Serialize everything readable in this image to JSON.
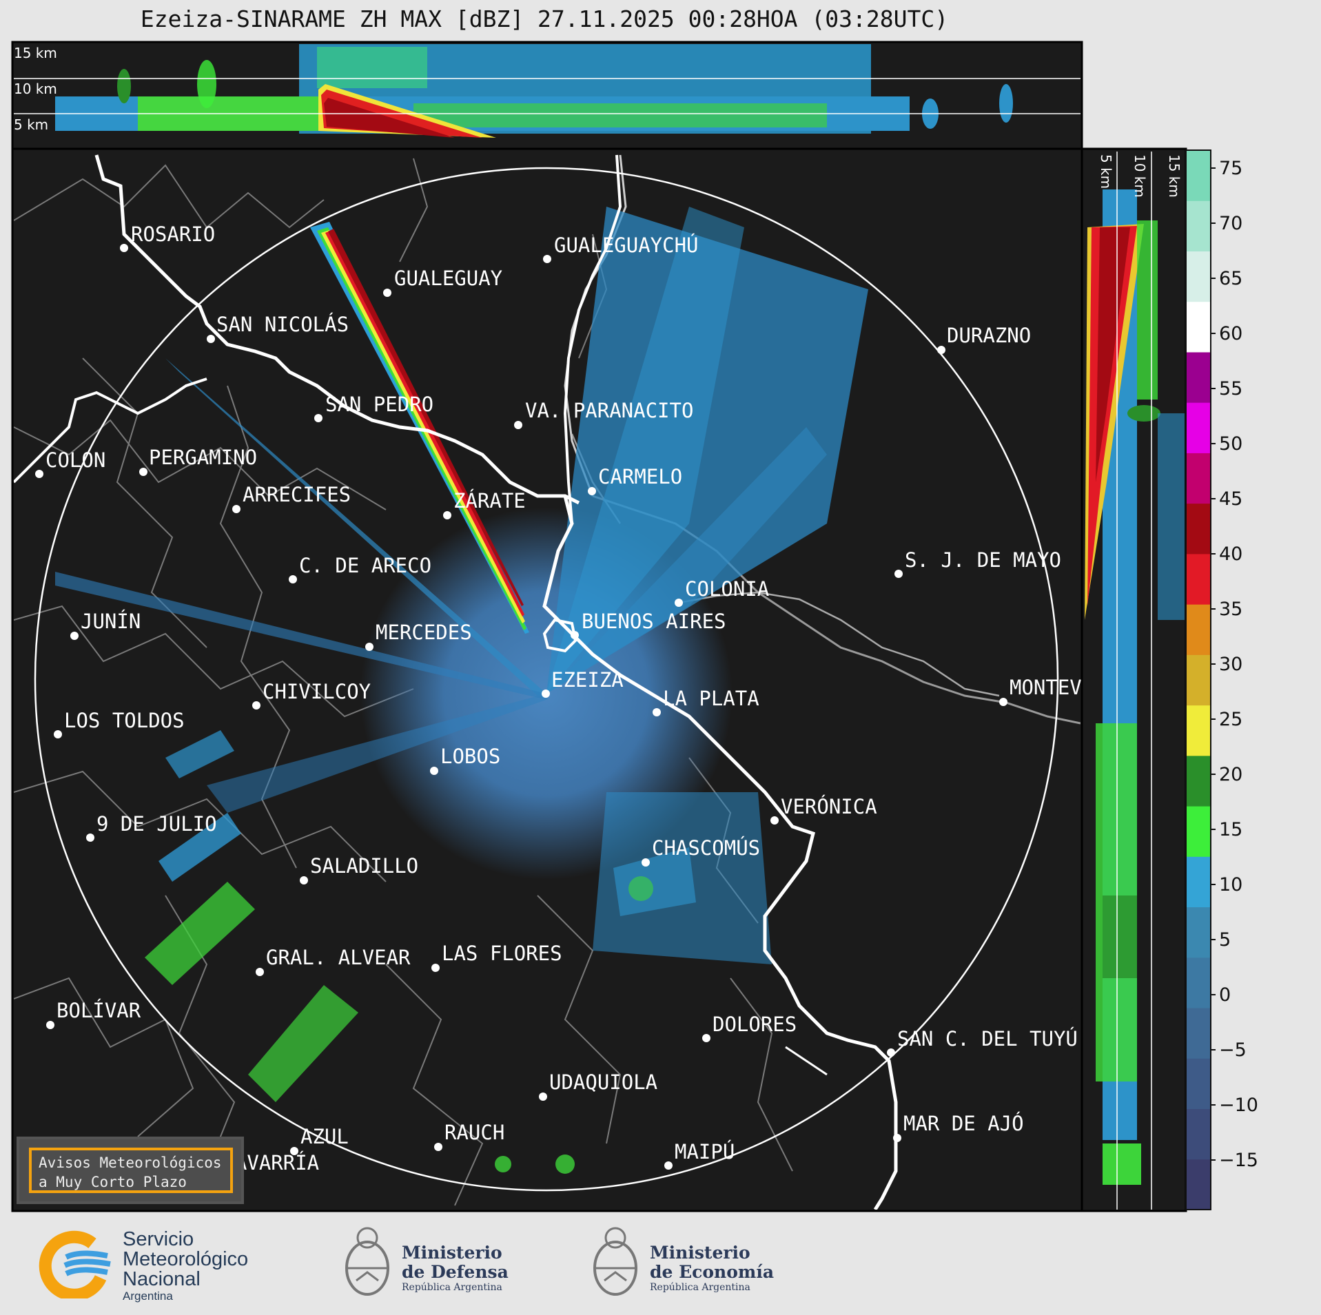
{
  "title": "Ezeiza-SINARAME ZH MAX [dBZ] 27.11.2025 00:28HOA (03:28UTC)",
  "top_panel_labels": [
    "15 km",
    "10 km",
    "5 km"
  ],
  "right_panel_labels": [
    "5 km",
    "10 km",
    "15 km"
  ],
  "colorbar": {
    "ticks": [
      "75",
      "70",
      "65",
      "60",
      "55",
      "50",
      "45",
      "40",
      "35",
      "30",
      "25",
      "20",
      "15",
      "10",
      "5",
      "0",
      "−5",
      "−10",
      "−15"
    ],
    "colors": [
      "#3b3d6b",
      "#3d4c7a",
      "#3e5b88",
      "#3f6a95",
      "#3d79a3",
      "#3b88b0",
      "#34a4d6",
      "#3dee3a",
      "#2a8f2a",
      "#f0ec3a",
      "#d4b02a",
      "#e08a1a",
      "#e21a26",
      "#a30a13",
      "#c2006e",
      "#e600e6",
      "#9b0090",
      "#ffffff",
      "#d7efe8",
      "#a6e4cf",
      "#7ad9b8"
    ]
  },
  "cities": [
    {
      "name": "ROSARIO"
    },
    {
      "name": "GUALEGUAYCHÚ"
    },
    {
      "name": "GUALEGUAY"
    },
    {
      "name": "SAN NICOLÁS"
    },
    {
      "name": "DURAZNO"
    },
    {
      "name": "SAN PEDRO"
    },
    {
      "name": "VA. PARANACITO"
    },
    {
      "name": "COLON"
    },
    {
      "name": "PERGAMINO"
    },
    {
      "name": "CARMELO"
    },
    {
      "name": "ARRECIFES"
    },
    {
      "name": "ZÁRATE"
    },
    {
      "name": "S. J. DE MAYO"
    },
    {
      "name": "C. DE ARECO"
    },
    {
      "name": "COLONIA"
    },
    {
      "name": "JUNÍN"
    },
    {
      "name": "BUENOS AIRES"
    },
    {
      "name": "MERCEDES"
    },
    {
      "name": "EZEIZA"
    },
    {
      "name": "MONTEVIDEO"
    },
    {
      "name": "CHIVILCOY"
    },
    {
      "name": "LA PLATA"
    },
    {
      "name": "LOS TOLDOS"
    },
    {
      "name": "LOBOS"
    },
    {
      "name": "VERÓNICA"
    },
    {
      "name": "9 DE JULIO"
    },
    {
      "name": "CHASCOMÚS"
    },
    {
      "name": "SALADILLO"
    },
    {
      "name": "GRAL. ALVEAR"
    },
    {
      "name": "LAS FLORES"
    },
    {
      "name": "BOLÍVAR"
    },
    {
      "name": "DOLORES"
    },
    {
      "name": "SAN C. DEL TUYÚ"
    },
    {
      "name": "UDAQUIOLA"
    },
    {
      "name": "MAR DE AJÓ"
    },
    {
      "name": "AZUL"
    },
    {
      "name": "RAUCH"
    },
    {
      "name": "OLAVARRÍA"
    },
    {
      "name": "MAIPÚ"
    }
  ],
  "alert_box": "Avisos Meteorológicos\na Muy Corto Plazo",
  "logos": {
    "smn": {
      "line1": "Servicio",
      "line2": "Meteorológico",
      "line3": "Nacional",
      "country": "Argentina"
    },
    "defensa": {
      "line1": "Ministerio",
      "line2": "de Defensa",
      "sub": "República Argentina"
    },
    "economia": {
      "line1": "Ministerio",
      "line2": "de Economía",
      "sub": "República Argentina"
    }
  }
}
